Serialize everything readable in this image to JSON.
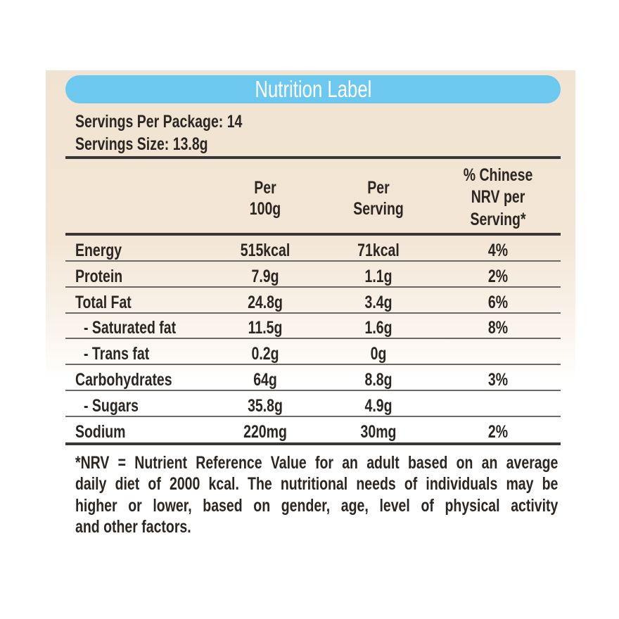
{
  "title": "Nutrition Label",
  "servings_per_package": "Servings Per Package: 14",
  "serving_size": "Servings Size: 13.8g",
  "columns": {
    "per100": [
      "Per",
      "100g"
    ],
    "per_serving": [
      "Per",
      "Serving"
    ],
    "nrv": [
      "% Chinese",
      "NRV per",
      "Serving*"
    ]
  },
  "rows": [
    {
      "name": "Energy",
      "per100": "515kcal",
      "per_serving": "71kcal",
      "nrv": "4%"
    },
    {
      "name": "Protein",
      "per100": "7.9g",
      "per_serving": "1.1g",
      "nrv": "2%"
    },
    {
      "name": "Total Fat",
      "per100": "24.8g",
      "per_serving": "3.4g",
      "nrv": "6%"
    },
    {
      "name": "- Saturated fat",
      "per100": "11.5g",
      "per_serving": "1.6g",
      "nrv": "8%"
    },
    {
      "name": "- Trans fat",
      "per100": "0.2g",
      "per_serving": "0g",
      "nrv": ""
    },
    {
      "name": "Carbohydrates",
      "per100": "64g",
      "per_serving": "8.8g",
      "nrv": "3%"
    },
    {
      "name": "- Sugars",
      "per100": "35.8g",
      "per_serving": "4.9g",
      "nrv": ""
    },
    {
      "name": "Sodium",
      "per100": "220mg",
      "per_serving": "30mg",
      "nrv": "2%"
    }
  ],
  "footnote": [
    "*NRV = Nutrient Reference Value for an adult based on an average",
    "daily diet of 2000 kcal. The nutritional needs of individuals may be",
    "higher or lower, based on gender, age, level of physical activity",
    "and other factors."
  ]
}
